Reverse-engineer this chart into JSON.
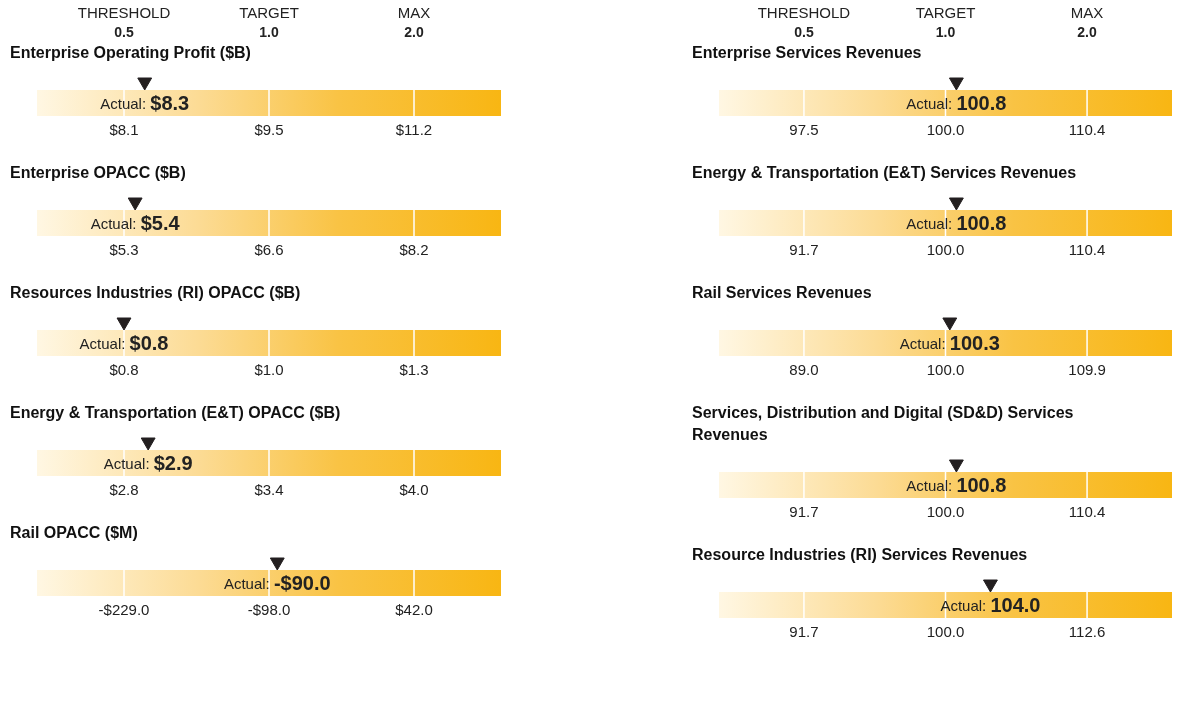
{
  "chart_data": [
    {
      "type": "other",
      "title": "Enterprise Operating Profit ($B)",
      "annotations": [
        "THRESHOLD 0.5",
        "TARGET 1.0",
        "MAX 2.0",
        "$8.1",
        "$9.5",
        "$11.2"
      ],
      "categories": [
        null
      ],
      "values": [
        8.3
      ],
      "value_labels": [
        "Actual: $8.3"
      ]
    },
    {
      "type": "other",
      "title": "Enterprise OPACC ($B)",
      "annotations": [
        "$5.3",
        "$6.6",
        "$8.2"
      ],
      "categories": [
        null
      ],
      "values": [
        5.4
      ],
      "value_labels": [
        "Actual: $5.4"
      ]
    },
    {
      "type": "other",
      "title": "Resources Industries (RI) OPACC ($B)",
      "annotations": [
        "$0.8",
        "$1.0",
        "$1.3"
      ],
      "categories": [
        null
      ],
      "values": [
        0.8
      ],
      "value_labels": [
        "Actual: $0.8"
      ]
    },
    {
      "type": "other",
      "title": "Energy & Transportation (E&T) OPACC ($B)",
      "annotations": [
        "$2.8",
        "$3.4",
        "$4.0"
      ],
      "categories": [
        null
      ],
      "values": [
        2.9
      ],
      "value_labels": [
        "Actual: $2.9"
      ]
    },
    {
      "type": "other",
      "title": "Rail OPACC ($M)",
      "annotations": [
        "-$229.0",
        "-$98.0",
        "$42.0"
      ],
      "categories": [
        null
      ],
      "values": [
        -90
      ],
      "value_labels": [
        "Actual: -$90.0"
      ]
    },
    {
      "type": "other",
      "title": "Enterprise Services Revenues",
      "annotations": [
        "THRESHOLD 0.5",
        "TARGET 1.0",
        "MAX 2.0",
        "97.5",
        "100.0",
        "110.4"
      ],
      "categories": [
        null
      ],
      "values": [
        100.8
      ],
      "value_labels": [
        "Actual: 100.8"
      ]
    },
    {
      "type": "other",
      "title": "Energy & Transportation (E&T) Services Revenues",
      "annotations": [
        "91.7",
        "100.0",
        "110.4"
      ],
      "categories": [
        null
      ],
      "values": [
        100.8
      ],
      "value_labels": [
        "Actual: 100.8"
      ]
    },
    {
      "type": "other",
      "title": "Rail Services Revenues",
      "annotations": [
        "89.0",
        "100.0",
        "109.9"
      ],
      "categories": [
        null
      ],
      "values": [
        100.3
      ],
      "value_labels": [
        "Actual: 100.3"
      ]
    },
    {
      "type": "other",
      "title": "Services, Distribution and Digital (SD&D) Services Revenues",
      "annotations": [
        "91.7",
        "100.0",
        "110.4"
      ],
      "categories": [
        null
      ],
      "values": [
        100.8
      ],
      "value_labels": [
        "Actual: 100.8"
      ]
    },
    {
      "type": "other",
      "title": "Resource Industries (RI) Services Revenues",
      "annotations": [
        "91.7",
        "100.0",
        "112.6"
      ],
      "categories": [
        null
      ],
      "values": [
        104.0
      ],
      "value_labels": [
        "Actual: 104.0"
      ]
    }
  ]
}
